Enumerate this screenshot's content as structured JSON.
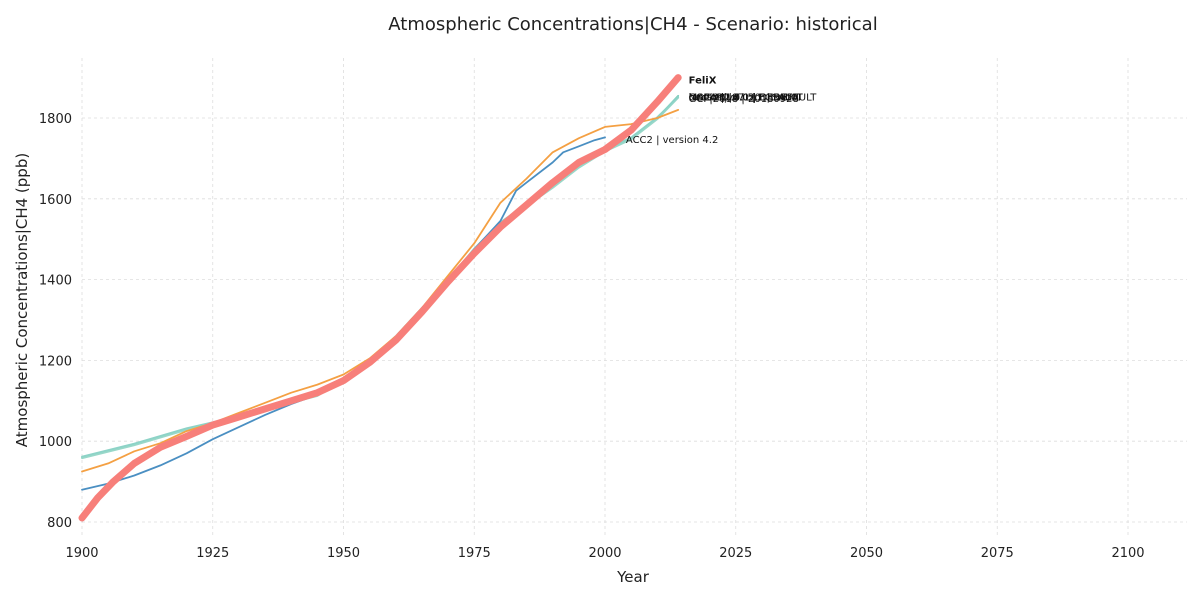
{
  "chart_data": {
    "type": "line",
    "title": "Atmospheric Concentrations|CH4 - Scenario: historical",
    "xlabel": "Year",
    "ylabel": "Atmospheric Concentrations|CH4 (ppb)",
    "xlim": [
      1900,
      2110
    ],
    "ylim": [
      760,
      1950
    ],
    "xticks": [
      1900,
      1925,
      1950,
      1975,
      2000,
      2025,
      2050,
      2075,
      2100
    ],
    "yticks": [
      800,
      1000,
      1200,
      1400,
      1600,
      1800
    ],
    "grid": true,
    "series": [
      {
        "name": "MAGICC",
        "color": "#7fcdbb",
        "width": 1.8,
        "points": [
          [
            1900,
            960
          ],
          [
            1910,
            992
          ],
          [
            1920,
            1030
          ],
          [
            1930,
            1060
          ],
          [
            1940,
            1098
          ],
          [
            1945,
            1115
          ],
          [
            1950,
            1155
          ],
          [
            1955,
            1200
          ],
          [
            1960,
            1255
          ],
          [
            1965,
            1325
          ],
          [
            1970,
            1398
          ],
          [
            1975,
            1475
          ],
          [
            1980,
            1540
          ],
          [
            1985,
            1585
          ],
          [
            1990,
            1630
          ],
          [
            1995,
            1680
          ],
          [
            2000,
            1720
          ],
          [
            2005,
            1750
          ],
          [
            2010,
            1800
          ],
          [
            2014,
            1855
          ]
        ]
      },
      {
        "name": "OSCAR",
        "color": "#99d8c9",
        "width": 1.8,
        "points": [
          [
            1900,
            958
          ],
          [
            1910,
            990
          ],
          [
            1920,
            1028
          ],
          [
            1930,
            1058
          ],
          [
            1940,
            1095
          ],
          [
            1945,
            1112
          ],
          [
            1950,
            1152
          ],
          [
            1955,
            1197
          ],
          [
            1960,
            1252
          ],
          [
            1965,
            1322
          ],
          [
            1970,
            1395
          ],
          [
            1975,
            1472
          ],
          [
            1980,
            1537
          ],
          [
            1985,
            1582
          ],
          [
            1990,
            1627
          ],
          [
            1995,
            1677
          ],
          [
            2000,
            1717
          ],
          [
            2005,
            1747
          ],
          [
            2010,
            1797
          ],
          [
            2014,
            1850
          ]
        ]
      },
      {
        "name": "hector",
        "color": "#8dd3c7",
        "width": 1.8,
        "points": [
          [
            1900,
            962
          ],
          [
            1910,
            994
          ],
          [
            1920,
            1032
          ],
          [
            1930,
            1062
          ],
          [
            1940,
            1100
          ],
          [
            1945,
            1117
          ],
          [
            1950,
            1157
          ],
          [
            1955,
            1202
          ],
          [
            1960,
            1257
          ],
          [
            1965,
            1327
          ],
          [
            1970,
            1400
          ],
          [
            1975,
            1477
          ],
          [
            1980,
            1542
          ],
          [
            1985,
            1587
          ],
          [
            1990,
            1632
          ],
          [
            1995,
            1682
          ],
          [
            2000,
            1722
          ],
          [
            2005,
            1752
          ],
          [
            2010,
            1802
          ],
          [
            2014,
            1852
          ]
        ]
      },
      {
        "name": "ACC2 | version 4.2",
        "color": "#4a8fc2",
        "width": 1.8,
        "points": [
          [
            1900,
            880
          ],
          [
            1905,
            895
          ],
          [
            1910,
            915
          ],
          [
            1915,
            940
          ],
          [
            1920,
            970
          ],
          [
            1925,
            1005
          ],
          [
            1930,
            1035
          ],
          [
            1935,
            1065
          ],
          [
            1940,
            1092
          ],
          [
            1945,
            1115
          ],
          [
            1950,
            1150
          ],
          [
            1955,
            1200
          ],
          [
            1960,
            1260
          ],
          [
            1965,
            1330
          ],
          [
            1970,
            1400
          ],
          [
            1975,
            1475
          ],
          [
            1980,
            1545
          ],
          [
            1983,
            1620
          ],
          [
            1985,
            1640
          ],
          [
            1990,
            1690
          ],
          [
            1992,
            1715
          ],
          [
            1995,
            1730
          ],
          [
            1998,
            1745
          ],
          [
            2000,
            1752
          ]
        ]
      },
      {
        "name": "",
        "color": "#f4a043",
        "width": 1.8,
        "points": [
          [
            1900,
            925
          ],
          [
            1905,
            945
          ],
          [
            1910,
            975
          ],
          [
            1915,
            995
          ],
          [
            1920,
            1025
          ],
          [
            1925,
            1045
          ],
          [
            1930,
            1070
          ],
          [
            1935,
            1095
          ],
          [
            1940,
            1120
          ],
          [
            1945,
            1140
          ],
          [
            1950,
            1165
          ],
          [
            1955,
            1205
          ],
          [
            1960,
            1260
          ],
          [
            1965,
            1330
          ],
          [
            1970,
            1410
          ],
          [
            1975,
            1490
          ],
          [
            1980,
            1590
          ],
          [
            1985,
            1650
          ],
          [
            1990,
            1715
          ],
          [
            1995,
            1750
          ],
          [
            2000,
            1778
          ],
          [
            2005,
            1785
          ],
          [
            2010,
            1800
          ],
          [
            2014,
            1820
          ]
        ]
      },
      {
        "name": "FeliX",
        "color": "#f77f7a",
        "width": 7,
        "points": [
          [
            1900,
            810
          ],
          [
            1903,
            860
          ],
          [
            1906,
            900
          ],
          [
            1910,
            945
          ],
          [
            1915,
            985
          ],
          [
            1920,
            1012
          ],
          [
            1925,
            1040
          ],
          [
            1930,
            1060
          ],
          [
            1935,
            1080
          ],
          [
            1940,
            1100
          ],
          [
            1945,
            1120
          ],
          [
            1950,
            1150
          ],
          [
            1955,
            1195
          ],
          [
            1960,
            1250
          ],
          [
            1965,
            1320
          ],
          [
            1970,
            1395
          ],
          [
            1975,
            1465
          ],
          [
            1980,
            1530
          ],
          [
            1985,
            1585
          ],
          [
            1990,
            1640
          ],
          [
            1995,
            1690
          ],
          [
            2000,
            1722
          ],
          [
            2005,
            1770
          ],
          [
            2010,
            1840
          ],
          [
            2014,
            1900
          ]
        ]
      }
    ],
    "annotations": [
      {
        "text": "FeliX",
        "x": 2016,
        "y": 1895,
        "bold": true
      },
      {
        "text": "hector|1.0.1 | DEFAULT",
        "x": 2016,
        "y": 1853,
        "bold": false
      },
      {
        "text": "hector|2.5.1 | DEFAULT",
        "x": 2016,
        "y": 1853,
        "bold": false
      },
      {
        "text": "OSCAR|v3.0 | ECS:3.0",
        "x": 2016,
        "y": 1853,
        "bold": false
      },
      {
        "text": "MAGICC|v7.5.1 | DEFAULT",
        "x": 2016,
        "y": 1853,
        "bold": false
      },
      {
        "text": "GCP|2018 | 20180928",
        "x": 2016,
        "y": 1853,
        "bold": false
      },
      {
        "text": "GCP|2018 | 20180928",
        "x": 2016,
        "y": 1849,
        "bold": false
      },
      {
        "text": "ACC2 | version 4.2",
        "x": 2004,
        "y": 1748,
        "bold": false
      }
    ]
  }
}
